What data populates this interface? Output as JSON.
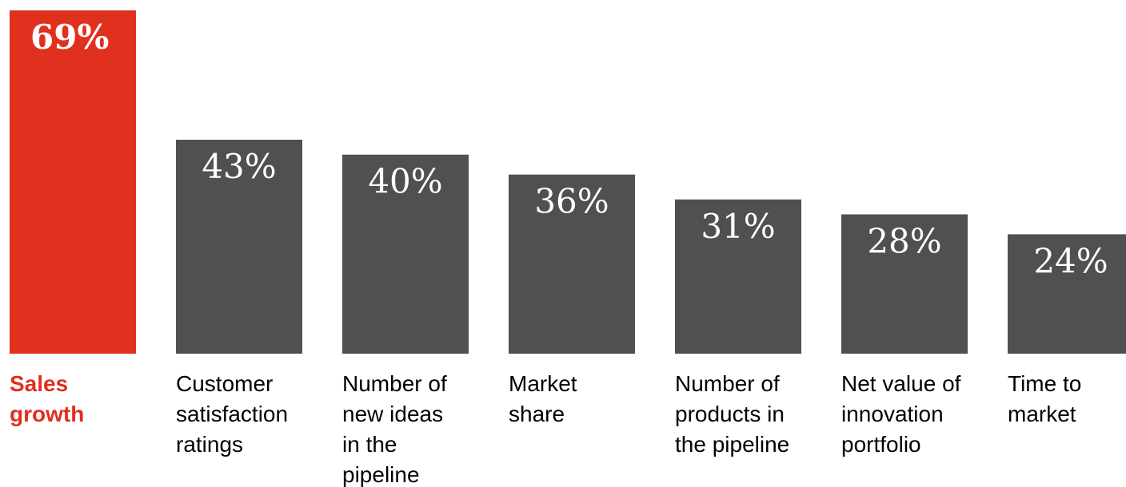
{
  "chart_data": {
    "type": "bar",
    "categories": [
      "Sales growth",
      "Customer satisfaction ratings",
      "Number of new ideas in the pipeline",
      "Market share",
      "Number of products in the pipeline",
      "Net value of innovation portfolio",
      "Time to market"
    ],
    "category_label_lines": [
      [
        "Sales",
        "growth"
      ],
      [
        "Customer",
        "satisfaction",
        "ratings"
      ],
      [
        "Number of",
        "new ideas",
        "in the",
        "pipeline"
      ],
      [
        "Market",
        "share"
      ],
      [
        "Number of",
        "products in",
        "the pipeline"
      ],
      [
        "Net value of",
        "innovation",
        "portfolio"
      ],
      [
        "Time to",
        "market"
      ]
    ],
    "values": [
      69,
      43,
      40,
      36,
      31,
      28,
      24
    ],
    "value_labels": [
      "69%",
      "43%",
      "40%",
      "36%",
      "31%",
      "28%",
      "24%"
    ],
    "highlight_index": 0,
    "ylim": [
      0,
      69
    ],
    "grid": false,
    "legend": "none"
  },
  "colors": {
    "highlight": "#e0301e",
    "bar": "#505050",
    "value_text": "#ffffff",
    "label_text": "#000000",
    "background": "#ffffff"
  }
}
